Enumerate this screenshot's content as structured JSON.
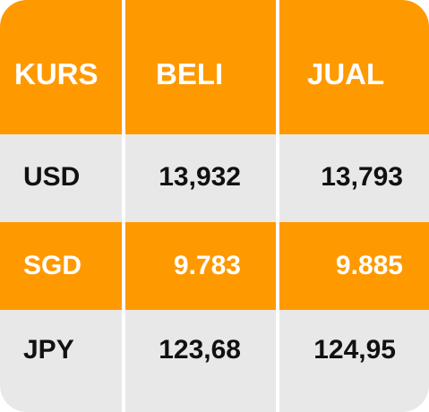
{
  "table": {
    "headers": [
      "KURS",
      "BELI",
      "JUAL"
    ],
    "rows": [
      {
        "currency": "USD",
        "beli": "13,932",
        "jual": "13,793"
      },
      {
        "currency": "SGD",
        "beli": "9.783",
        "jual": "9.885"
      },
      {
        "currency": "JPY",
        "beli": "123,68",
        "jual": "124,95"
      }
    ]
  },
  "colors": {
    "accent": "#ff9900",
    "row_alt": "#e8e8e8",
    "divider": "#ffffff"
  }
}
